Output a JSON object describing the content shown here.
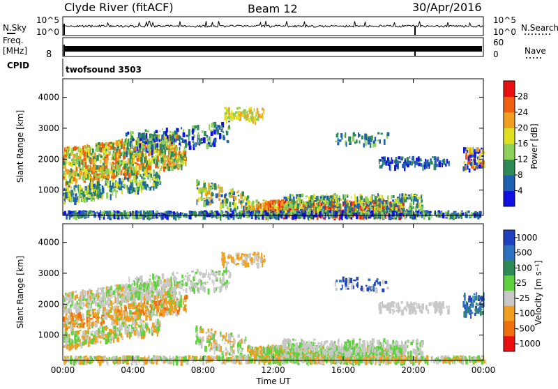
{
  "header": {
    "station": "Clyde River (fitACF)",
    "beam": "Beam 12",
    "date": "30/Apr/2016"
  },
  "strips": {
    "nsky_label": "N.Sky",
    "nsky_ticks": [
      "10^5",
      "10^0"
    ],
    "nsearch_label": "N.Search",
    "freq_label": "Freq.",
    "freq_unit": "[MHz]",
    "freq_ticks": [
      "8"
    ],
    "nave_ticks": [
      "60",
      "0"
    ],
    "nave_label": "Nave",
    "cpid_label": "CPID",
    "cpid_value": "twofsound 3503"
  },
  "chart_data": [
    {
      "type": "heatmap",
      "panel": "power",
      "ylabel": "Slant Range [km]",
      "yticks": [
        1000,
        2000,
        3000,
        4000
      ],
      "ylim": [
        180,
        4600
      ],
      "xlabel": "Time UT",
      "xticks": [
        "00:00",
        "04:00",
        "08:00",
        "12:00",
        "16:00",
        "20:00",
        "00:00"
      ],
      "colorbar": {
        "label": "Power [dB]",
        "ticks": [
          "4",
          "8",
          "12",
          "16",
          "20",
          "24",
          "28"
        ],
        "colors": [
          "#1010e0",
          "#2060b0",
          "#2e8b57",
          "#8fd05a",
          "#e0e020",
          "#f0a020",
          "#f06010",
          "#e81010"
        ]
      }
    },
    {
      "type": "heatmap",
      "panel": "velocity",
      "ylabel": "Slant Range [km]",
      "yticks": [
        1000,
        2000,
        3000,
        4000
      ],
      "ylim": [
        180,
        4600
      ],
      "xlabel": "Time UT",
      "xticks": [
        "00:00",
        "04:00",
        "08:00",
        "12:00",
        "16:00",
        "20:00",
        "00:00"
      ],
      "colorbar": {
        "label": "Velocity [m s⁻¹]",
        "ticks": [
          "1000",
          "500",
          "100",
          "25",
          "-25",
          "-100",
          "-500",
          "-1000"
        ],
        "colors": [
          "#2040c0",
          "#3070c0",
          "#2e8b57",
          "#60d040",
          "#c8c8c8",
          "#f0a020",
          "#f07010",
          "#e81010"
        ]
      }
    }
  ]
}
